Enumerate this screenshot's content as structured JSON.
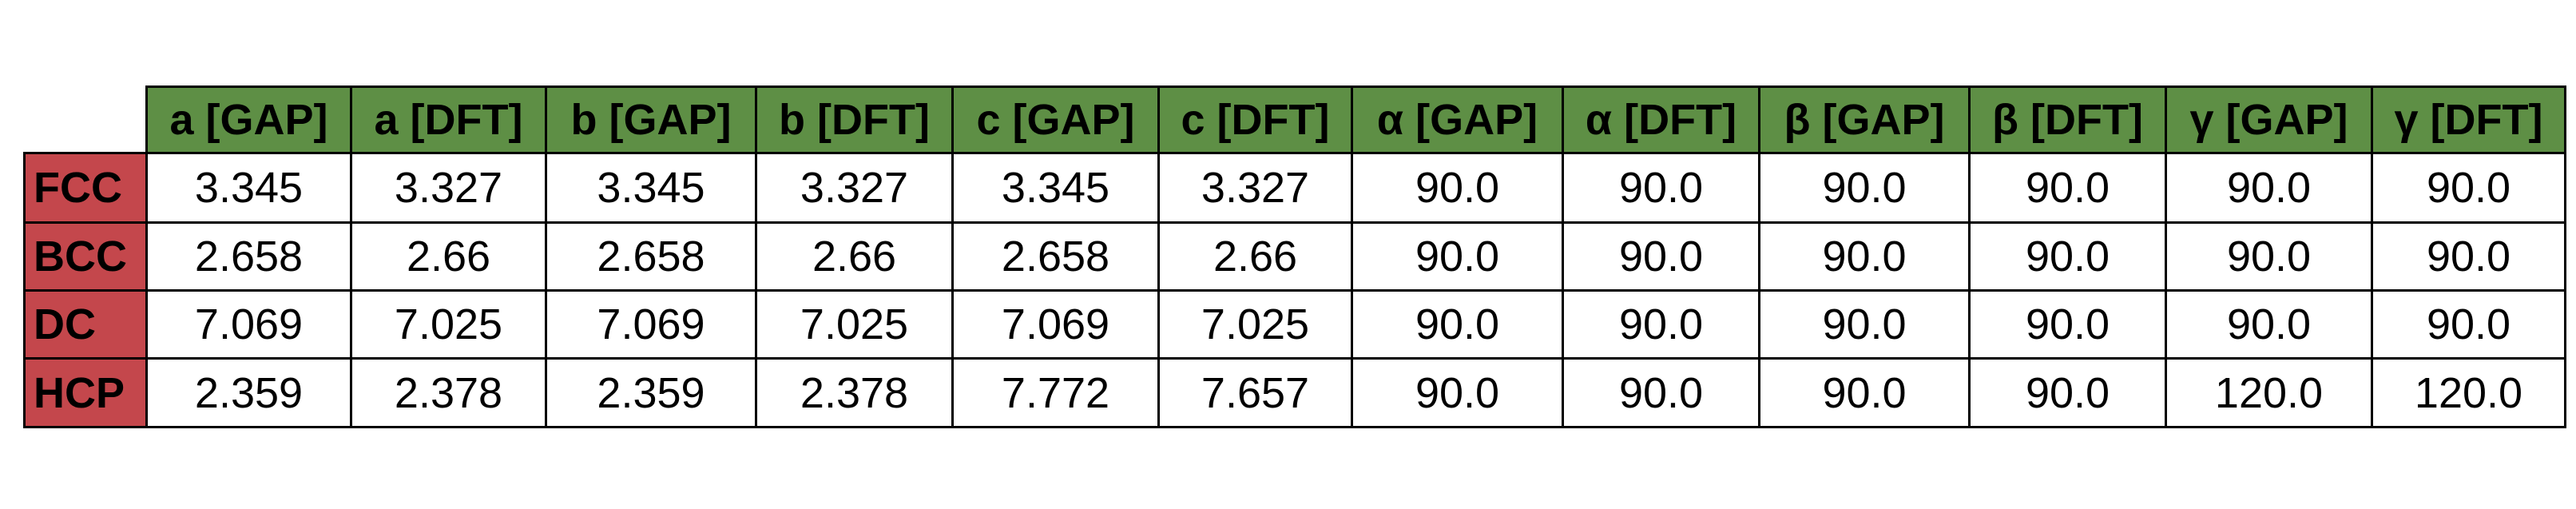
{
  "table": {
    "columns": [
      "a [GAP]",
      "a [DFT]",
      "b [GAP]",
      "b [DFT]",
      "c [GAP]",
      "c [DFT]",
      "α [GAP]",
      "α [DFT]",
      "β [GAP]",
      "β [DFT]",
      "γ [GAP]",
      "γ [DFT]"
    ],
    "rows": [
      {
        "label": "FCC",
        "cells": [
          "3.345",
          "3.327",
          "3.345",
          "3.327",
          "3.345",
          "3.327",
          "90.0",
          "90.0",
          "90.0",
          "90.0",
          "90.0",
          "90.0"
        ]
      },
      {
        "label": "BCC",
        "cells": [
          "2.658",
          "2.66",
          "2.658",
          "2.66",
          "2.658",
          "2.66",
          "90.0",
          "90.0",
          "90.0",
          "90.0",
          "90.0",
          "90.0"
        ]
      },
      {
        "label": "DC",
        "cells": [
          "7.069",
          "7.025",
          "7.069",
          "7.025",
          "7.069",
          "7.025",
          "90.0",
          "90.0",
          "90.0",
          "90.0",
          "90.0",
          "90.0"
        ]
      },
      {
        "label": "HCP",
        "cells": [
          "2.359",
          "2.378",
          "2.359",
          "2.378",
          "7.772",
          "7.657",
          "90.0",
          "90.0",
          "90.0",
          "90.0",
          "120.0",
          "120.0"
        ]
      }
    ]
  }
}
